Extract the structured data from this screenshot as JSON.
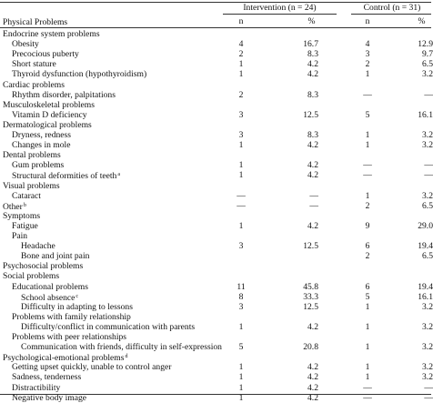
{
  "header": {
    "label": "Physical Problems",
    "groups": [
      {
        "label": "Intervention (n = 24)",
        "columns": [
          "n",
          "%"
        ]
      },
      {
        "label": "Control (n = 31)",
        "columns": [
          "n",
          "%"
        ]
      }
    ]
  },
  "sections": [
    {
      "label": "Endocrine system problems",
      "items": [
        {
          "label": "Obesity",
          "cells": [
            "4",
            "16.7",
            "4",
            "12.9"
          ]
        },
        {
          "label": "Precocious puberty",
          "cells": [
            "2",
            "8.3",
            "3",
            "9.7"
          ]
        },
        {
          "label": "Short stature",
          "cells": [
            "1",
            "4.2",
            "2",
            "6.5"
          ]
        },
        {
          "label": "Thyroid dysfunction (hypothyroidism)",
          "cells": [
            "1",
            "4.2",
            "1",
            "3.2"
          ]
        }
      ]
    },
    {
      "label": "Cardiac problems",
      "items": [
        {
          "label": "Rhythm disorder, palpitations",
          "cells": [
            "2",
            "8.3",
            "—",
            "—"
          ]
        }
      ]
    },
    {
      "label": "Musculoskeletal problems",
      "items": [
        {
          "label": "Vitamin D deficiency",
          "cells": [
            "3",
            "12.5",
            "5",
            "16.1"
          ]
        }
      ]
    },
    {
      "label": "Dermatological problems",
      "items": [
        {
          "label": "Dryness, redness",
          "cells": [
            "3",
            "8.3",
            "1",
            "3.2"
          ]
        },
        {
          "label": "Changes in mole",
          "cells": [
            "1",
            "4.2",
            "1",
            "3.2"
          ]
        }
      ]
    },
    {
      "label": "Dental problems",
      "items": [
        {
          "label": "Gum problems",
          "cells": [
            "1",
            "4.2",
            "—",
            "—"
          ]
        },
        {
          "label": "Structural deformities of teeth",
          "note": "a",
          "cells": [
            "1",
            "4.2",
            "—",
            "—"
          ]
        }
      ]
    },
    {
      "label": "Visual problems",
      "items": [
        {
          "label": "Cataract",
          "cells": [
            "—",
            "—",
            "1",
            "3.2"
          ]
        }
      ]
    },
    {
      "label": "Other",
      "note": "b",
      "cells": [
        "—",
        "—",
        "2",
        "6.5"
      ]
    },
    {
      "label": "Symptoms",
      "items": [
        {
          "label": "Fatigue",
          "cells": [
            "1",
            "4.2",
            "9",
            "29.0"
          ]
        },
        {
          "label": "Pain",
          "items": [
            {
              "label": "Headache",
              "cells": [
                "3",
                "12.5",
                "6",
                "19.4"
              ]
            },
            {
              "label": "Bone and joint pain",
              "cells": [
                null,
                null,
                "2",
                "6.5"
              ]
            }
          ]
        }
      ]
    },
    {
      "label": "Psychosocial problems"
    },
    {
      "label": "Social problems",
      "items": [
        {
          "label": "Educational problems",
          "cells": [
            "11",
            "45.8",
            "6",
            "19.4"
          ],
          "items": [
            {
              "label": "School absence",
              "note": "c",
              "cells": [
                "8",
                "33.3",
                "5",
                "16.1"
              ]
            },
            {
              "label": "Difficulty in adapting to lessons",
              "cells": [
                "3",
                "12.5",
                "1",
                "3.2"
              ]
            }
          ]
        },
        {
          "label": "Problems with family relationship",
          "items": [
            {
              "label": "Difficulty/conflict in communication with parents",
              "cells": [
                "1",
                "4.2",
                "1",
                "3.2"
              ]
            }
          ]
        },
        {
          "label": "Problems with peer relationships",
          "items": [
            {
              "label": "Communication with friends, difficulty in self-expression",
              "cells": [
                "5",
                "20.8",
                "1",
                "3.2"
              ]
            }
          ]
        }
      ]
    },
    {
      "label": "Psychological-emotional problems",
      "note": "d",
      "items": [
        {
          "label": "Getting upset quickly, unable to control anger",
          "cells": [
            "1",
            "4.2",
            "1",
            "3.2"
          ]
        },
        {
          "label": "Sadness, tenderness",
          "cells": [
            "1",
            "4.2",
            "1",
            "3.2"
          ]
        },
        {
          "label": "Distractibility",
          "cells": [
            "1",
            "4.2",
            "—",
            "—"
          ]
        },
        {
          "label": "Negative body image",
          "cells": [
            "1",
            "4.2",
            "—",
            "—"
          ]
        }
      ]
    }
  ]
}
